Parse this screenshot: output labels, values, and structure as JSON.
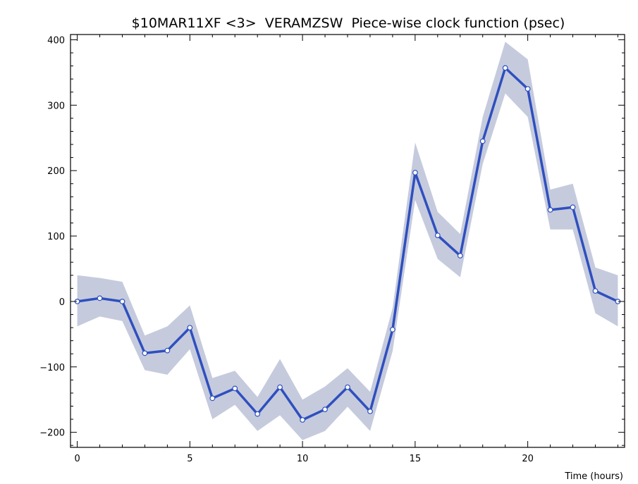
{
  "chart_data": {
    "type": "line",
    "title": "$10MAR11XF <3>  VERAMZSW  Piece-wise clock function (psec)",
    "xlabel": "Time (hours)",
    "ylabel": "",
    "xlim": [
      -0.3,
      24.3
    ],
    "ylim": [
      -223,
      408
    ],
    "x_ticks": [
      0,
      5,
      10,
      15,
      20
    ],
    "y_ticks": [
      -200,
      -100,
      0,
      100,
      200,
      300,
      400
    ],
    "grid": false,
    "series": [
      {
        "x": [
          0,
          1,
          2,
          3,
          4,
          5,
          6,
          7,
          8,
          9,
          10,
          11,
          12,
          13,
          14,
          15,
          16,
          17,
          18,
          19,
          20,
          21,
          22,
          23,
          24
        ],
        "values": [
          0,
          5,
          0,
          -79,
          -75,
          -40,
          -148,
          -133,
          -172,
          -131,
          -181,
          -165,
          -131,
          -168,
          -43,
          197,
          101,
          70,
          245,
          357,
          325,
          140,
          144,
          16,
          0
        ],
        "upper": [
          40,
          36,
          30,
          -52,
          -38,
          -6,
          -117,
          -106,
          -146,
          -88,
          -150,
          -130,
          -102,
          -138,
          -10,
          243,
          137,
          103,
          282,
          397,
          370,
          171,
          180,
          52,
          40
        ],
        "lower": [
          -38,
          -23,
          -30,
          -105,
          -112,
          -73,
          -180,
          -158,
          -198,
          -174,
          -212,
          -198,
          -161,
          -198,
          -76,
          155,
          65,
          37,
          210,
          318,
          282,
          110,
          110,
          -18,
          -38
        ]
      }
    ],
    "colors": {
      "line": "#2f4fbf",
      "band": "#c5cbdd",
      "marker_fill": "#ffffff",
      "axis": "#000000"
    }
  }
}
